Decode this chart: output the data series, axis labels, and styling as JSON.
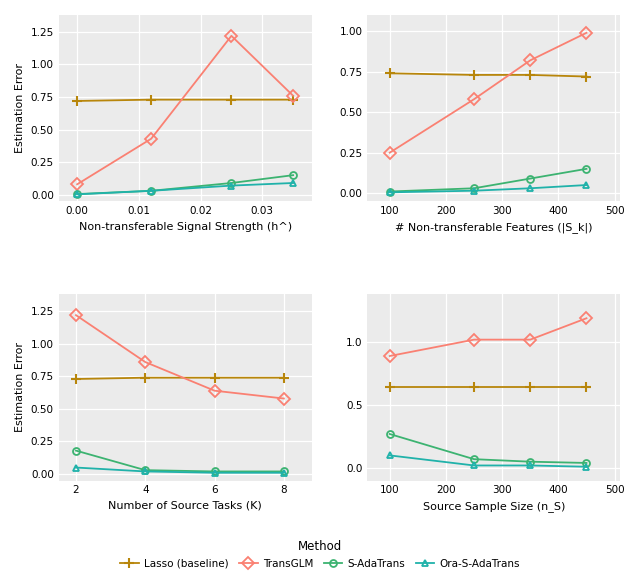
{
  "panel_tl": {
    "xlabel": "Non-transferable Signal Strength (h^)",
    "x": [
      0.0,
      0.012,
      0.025,
      0.035
    ],
    "lasso": [
      0.72,
      0.73,
      0.73,
      0.73
    ],
    "transglm": [
      0.08,
      0.43,
      1.22,
      0.76
    ],
    "sadatrans": [
      0.005,
      0.03,
      0.09,
      0.15
    ],
    "ora": [
      0.003,
      0.03,
      0.07,
      0.09
    ],
    "ylim": [
      -0.05,
      1.38
    ],
    "yticks": [
      0.0,
      0.25,
      0.5,
      0.75,
      1.0,
      1.25
    ],
    "xticks": [
      0.0,
      0.01,
      0.02,
      0.03
    ],
    "xlim": [
      -0.003,
      0.038
    ]
  },
  "panel_tr": {
    "xlabel": "# Non-transferable Features (|S_k|)",
    "x": [
      100,
      250,
      350,
      450
    ],
    "lasso": [
      0.74,
      0.73,
      0.73,
      0.72
    ],
    "transglm": [
      0.25,
      0.58,
      0.82,
      0.99
    ],
    "sadatrans": [
      0.01,
      0.03,
      0.09,
      0.15
    ],
    "ora": [
      0.005,
      0.015,
      0.03,
      0.05
    ],
    "ylim": [
      -0.05,
      1.1
    ],
    "yticks": [
      0.0,
      0.25,
      0.5,
      0.75,
      1.0
    ],
    "xticks": [
      100,
      200,
      300,
      400,
      500
    ],
    "xlim": [
      60,
      510
    ]
  },
  "panel_bl": {
    "xlabel": "Number of Source Tasks (K)",
    "x": [
      2,
      4,
      6,
      8
    ],
    "lasso": [
      0.73,
      0.74,
      0.74,
      0.74
    ],
    "transglm": [
      1.22,
      0.86,
      0.64,
      0.58
    ],
    "sadatrans": [
      0.18,
      0.03,
      0.02,
      0.02
    ],
    "ora": [
      0.05,
      0.02,
      0.01,
      0.01
    ],
    "ylim": [
      -0.05,
      1.38
    ],
    "yticks": [
      0.0,
      0.25,
      0.5,
      0.75,
      1.0,
      1.25
    ],
    "xticks": [
      2,
      4,
      6,
      8
    ],
    "xlim": [
      1.5,
      8.8
    ]
  },
  "panel_br": {
    "xlabel": "Source Sample Size (n_S)",
    "x": [
      100,
      250,
      350,
      450
    ],
    "lasso": [
      0.64,
      0.64,
      0.64,
      0.64
    ],
    "transglm": [
      0.89,
      1.02,
      1.02,
      1.19
    ],
    "sadatrans": [
      0.27,
      0.07,
      0.05,
      0.04
    ],
    "ora": [
      0.1,
      0.02,
      0.02,
      0.01
    ],
    "ylim": [
      -0.1,
      1.38
    ],
    "yticks": [
      0.0,
      0.5,
      1.0
    ],
    "xticks": [
      100,
      200,
      300,
      400,
      500
    ],
    "xlim": [
      60,
      510
    ]
  },
  "colors": {
    "lasso": "#b8860b",
    "transglm": "#fa8072",
    "sadatrans": "#3cb371",
    "ora": "#20b2aa"
  },
  "ylabel": "Estimation Error",
  "bg_color": "#ebebeb",
  "legend_labels": [
    "Lasso (baseline)",
    "TransGLM",
    "S-AdaTrans",
    "Ora-S-AdaTrans"
  ]
}
